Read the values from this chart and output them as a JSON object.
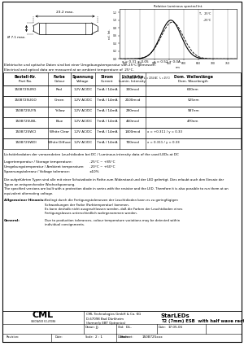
{
  "title_line1": "StarLEDs",
  "title_line2": "T2 (7mm) ESB  with half wave rectifier",
  "company_line1": "CML Technologies GmbH & Co. KG",
  "company_line2": "D-67098 Bad Dürkheim",
  "company_line3": "(formerly EBT Optronics)",
  "drawn": "J.J.",
  "checked": "D.L.",
  "date": "17.05.06",
  "scale": "2 : 1",
  "datasheet": "1508725xxx",
  "dim_length": "23.2 max.",
  "dim_diameter": "Ø 7.1 max.",
  "graph_title": "Relative Luminous spectral Int.",
  "note1": "Elektrische und optische Daten sind bei einer Umgebungstemperatur von 25°C gemessen.",
  "note1_en": "Electrical and optical data are measured at an ambient temperature of  25°C.",
  "table_headers": [
    "Bestell-Nr.\nPart No.",
    "Farbe\nColour",
    "Spannung\nVoltage",
    "Strom\nCurrent",
    "Lichstärke\nLumin. Intensity",
    "Dom. Wellenlänge\nDom. Wavelength"
  ],
  "table_rows": [
    [
      "1508725URO",
      "Red",
      "12V AC/DC",
      "7mA / 14mA",
      "330mcd",
      "630nm"
    ],
    [
      "1508725UGO",
      "Green",
      "12V AC/DC",
      "7mA / 14mA",
      "2100mcd",
      "525nm"
    ],
    [
      "1508725UYS",
      "Yellow",
      "12V AC/DC",
      "7mA / 14mA",
      "290mcd",
      "587nm"
    ],
    [
      "1508725UBL",
      "Blue",
      "12V AC/DC",
      "7mA / 14mA",
      "460mcd",
      "470nm"
    ],
    [
      "1508725WCI",
      "White Clear",
      "12V AC/DC",
      "7mA / 14mA",
      "1400mcd",
      "x = +0.311 / y = 0.33"
    ],
    [
      "1508725WDI",
      "White Diffuse",
      "12V AC/DC",
      "7mA / 14mA",
      "700mcd",
      "x = 0.311 / y = 0.33"
    ]
  ],
  "lum_note": "Lichstärkedaten der verwendeten Leuchtdioden bei DC / Luminous intensity data of the used LEDs at DC",
  "storage_label": "Lagertemperatur / Storage temperature:",
  "storage_val": "-25°C ~ +85°C",
  "ambient_label": "Umgebungstemperatur / Ambient temperature:",
  "ambient_val": "-20°C ~ +60°C",
  "voltage_label": "Spannungstoleranz / Voltage tolerance:",
  "voltage_val": "±10%",
  "protection_de": "Die aufgeführten Typen sind alle mit einer Schutzdiode in Reihe zum Widerstand und der LED gefertigt. Dies erlaubt auch den Einsatz der\nTypen an entsprechender Wechselspannung.",
  "protection_en": "The specified versions are built with a protection diode in series with the resistor and the LED. Therefore it is also possible to run them at an\nequivalent alternating voltage.",
  "allg_label": "Allgemeiner Hinweis:",
  "allg_de": "Bedingt durch die Fertigungstoleranzen der Leuchtdioden kann es zu geringfügigen\nSchwankungen der Farbe (Farbtemperatur) kommen.\nEs kann deshalb nicht ausgeschlossen werden, daß die Farben der Leuchtdioden eines\nFertigungslosses unterschiedlich wahrgenommen werden.",
  "general_label": "General:",
  "general_en": "Due to production tolerances, colour temperature variations may be detected within\nindividual consignments.",
  "bg_color": "#ffffff"
}
